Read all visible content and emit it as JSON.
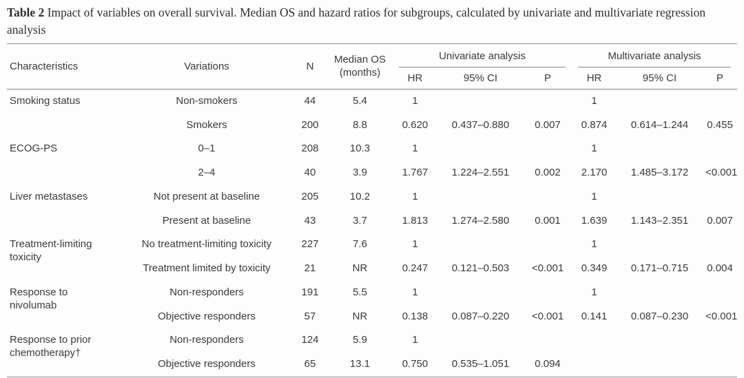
{
  "page": {
    "background": "#fdfdfd",
    "text_color": "#3a3a3a",
    "rule_color": "#8a8a8a"
  },
  "caption": {
    "label": "Table 2",
    "text": "Impact of variables on overall survival. Median OS and hazard ratios for subgroups, calculated by univariate and multivariate regression analysis"
  },
  "table": {
    "headers": {
      "characteristics": "Characteristics",
      "variations": "Variations",
      "n": "N",
      "median_os": "Median OS (months)",
      "univariate_group": "Univariate analysis",
      "multivariate_group": "Multivariate analysis",
      "hr": "HR",
      "ci": "95% CI",
      "p": "P"
    },
    "rows": [
      {
        "characteristic": "Smoking status",
        "variation": "Non-smokers",
        "n": "44",
        "median_os": "5.4",
        "uni_hr": "1",
        "uni_ci": "",
        "uni_p": "",
        "multi_hr": "1",
        "multi_ci": "",
        "multi_p": ""
      },
      {
        "variation": "Smokers",
        "n": "200",
        "median_os": "8.8",
        "uni_hr": "0.620",
        "uni_ci": "0.437–0.880",
        "uni_p": "0.007",
        "multi_hr": "0.874",
        "multi_ci": "0.614–1.244",
        "multi_p": "0.455"
      },
      {
        "characteristic": "ECOG-PS",
        "variation": "0–1",
        "n": "208",
        "median_os": "10.3",
        "uni_hr": "1",
        "uni_ci": "",
        "uni_p": "",
        "multi_hr": "1",
        "multi_ci": "",
        "multi_p": ""
      },
      {
        "variation": "2–4",
        "n": "40",
        "median_os": "3.9",
        "uni_hr": "1.767",
        "uni_ci": "1.224–2.551",
        "uni_p": "0.002",
        "multi_hr": "2.170",
        "multi_ci": "1.485–3.172",
        "multi_p": "<0.001"
      },
      {
        "characteristic": "Liver metastases",
        "variation": "Not present at baseline",
        "n": "205",
        "median_os": "10.2",
        "uni_hr": "1",
        "uni_ci": "",
        "uni_p": "",
        "multi_hr": "1",
        "multi_ci": "",
        "multi_p": ""
      },
      {
        "variation": "Present at baseline",
        "n": "43",
        "median_os": "3.7",
        "uni_hr": "1.813",
        "uni_ci": "1.274–2.580",
        "uni_p": "0.001",
        "multi_hr": "1.639",
        "multi_ci": "1.143–2.351",
        "multi_p": "0.007"
      },
      {
        "characteristic": "Treatment-limiting toxicity",
        "variation": "No treatment-limiting toxicity",
        "n": "227",
        "median_os": "7.6",
        "uni_hr": "1",
        "uni_ci": "",
        "uni_p": "",
        "multi_hr": "1",
        "multi_ci": "",
        "multi_p": ""
      },
      {
        "variation": "Treatment limited by toxicity",
        "n": "21",
        "median_os": "NR",
        "uni_hr": "0.247",
        "uni_ci": "0.121–0.503",
        "uni_p": "<0.001",
        "multi_hr": "0.349",
        "multi_ci": "0.171–0.715",
        "multi_p": "0.004"
      },
      {
        "characteristic": "Response to nivolumab",
        "variation": "Non-responders",
        "n": "191",
        "median_os": "5.5",
        "uni_hr": "1",
        "uni_ci": "",
        "uni_p": "",
        "multi_hr": "1",
        "multi_ci": "",
        "multi_p": ""
      },
      {
        "variation": "Objective responders",
        "n": "57",
        "median_os": "NR",
        "uni_hr": "0.138",
        "uni_ci": "0.087–0.220",
        "uni_p": "<0.001",
        "multi_hr": "0.141",
        "multi_ci": "0.087–0.230",
        "multi_p": "<0.001"
      },
      {
        "characteristic": "Response to prior chemotherapy†",
        "variation": "Non-responders",
        "n": "124",
        "median_os": "5.9",
        "uni_hr": "1",
        "uni_ci": "",
        "uni_p": "",
        "multi_hr": "",
        "multi_ci": "",
        "multi_p": ""
      },
      {
        "variation": "Objective responders",
        "n": "65",
        "median_os": "13.1",
        "uni_hr": "0.750",
        "uni_ci": "0.535–1.051",
        "uni_p": "0.094",
        "multi_hr": "",
        "multi_ci": "",
        "multi_p": ""
      }
    ]
  }
}
